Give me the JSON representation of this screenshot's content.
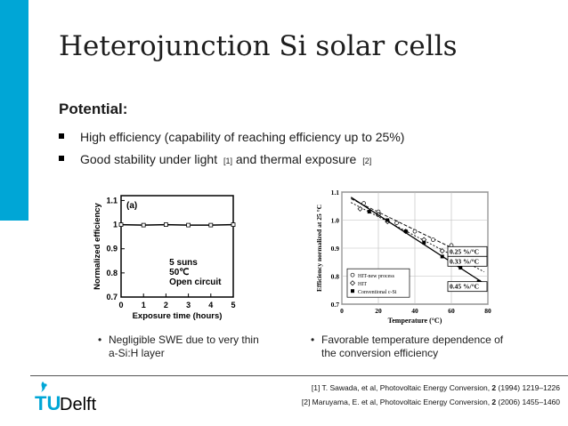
{
  "slide": {
    "title": "Heterojunction Si solar cells",
    "subtitle": "Potential:",
    "bullets": [
      {
        "text": "High efficiency (capability of reaching efficiency up to 25%)",
        "ref": ""
      },
      {
        "text": "Good stability under light ",
        "ref": "[1]",
        "text2": " and thermal exposure ",
        "ref2": "[2]"
      }
    ],
    "captions": {
      "left_line1": "Negligible SWE due to very thin",
      "left_line2": "a-Si:H layer",
      "right_line1": "Favorable temperature dependence of",
      "right_line2": "the conversion efficiency"
    },
    "references": {
      "ref1_pre": "[1] T. Sawada, et al, Photovoltaic Energy Conversion, ",
      "ref1_bold": "2",
      "ref1_post": " (1994) 1219–1226",
      "ref2_pre": "[2] Maruyama, E. et al, Photovoltaic Energy Conversion, ",
      "ref2_bold": "2",
      "ref2_post": " (2006) 1455–1460"
    },
    "logo": {
      "tu": "TU",
      "delft": "Delft"
    },
    "accent_color": "#00a6d6"
  },
  "chart_data": [
    {
      "type": "line",
      "panel_label": "(a)",
      "xlabel": "Exposure time (hours)",
      "ylabel": "Normalized efficiency",
      "xlim": [
        0,
        5
      ],
      "ylim": [
        0.7,
        1.12
      ],
      "x_ticks": [
        "0",
        "1",
        "2",
        "3",
        "4",
        "5"
      ],
      "y_ticks": [
        "0.7",
        "0.8",
        "0.9",
        "1",
        "1.1"
      ],
      "annotation": [
        "5 suns",
        "50℃",
        "Open circuit"
      ],
      "series": [
        {
          "x": [
            0,
            1,
            2,
            3,
            4,
            5
          ],
          "y": [
            1.0,
            0.998,
            1.0,
            0.998,
            0.998,
            1.0
          ]
        }
      ]
    },
    {
      "type": "scatter",
      "xlabel": "Temperature (°C)",
      "ylabel": "Efficiency normalized at 25 °C",
      "xlim": [
        0,
        80
      ],
      "ylim": [
        0.7,
        1.1
      ],
      "x_ticks": [
        "0",
        "20",
        "40",
        "60",
        "80"
      ],
      "y_ticks": [
        "0.7",
        "0.8",
        "0.9",
        "1.0",
        "1.1"
      ],
      "legend": [
        "HIT-new process",
        "HIT",
        "Conventional c-Si"
      ],
      "slope_labels": [
        "0.25 %/°C",
        "0.33 %/°C",
        "0.45 %/°C"
      ],
      "series": [
        {
          "name": "HIT-new process",
          "x": [
            12,
            20,
            30,
            40,
            50,
            60,
            70
          ],
          "y": [
            1.06,
            1.03,
            0.99,
            0.96,
            0.93,
            0.91,
            0.87
          ]
        },
        {
          "name": "HIT",
          "x": [
            10,
            20,
            25,
            35,
            45,
            55,
            65
          ],
          "y": [
            1.04,
            1.02,
            0.995,
            0.96,
            0.93,
            0.89,
            0.86
          ]
        },
        {
          "name": "Conventional c-Si",
          "x": [
            15,
            25,
            35,
            45,
            55,
            65,
            75
          ],
          "y": [
            1.03,
            1.0,
            0.96,
            0.92,
            0.87,
            0.83,
            0.78
          ]
        }
      ]
    }
  ]
}
